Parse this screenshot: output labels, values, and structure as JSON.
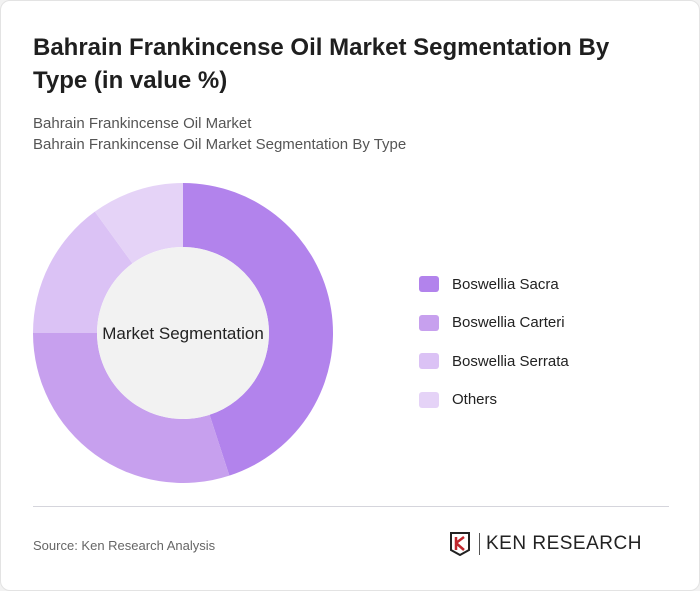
{
  "title": "Bahrain Frankincense Oil Market Segmentation By Type (in value %)",
  "subtitle1": "Bahrain Frankincense Oil Market",
  "subtitle2": "Bahrain Frankincense Oil Market Segmentation By Type",
  "source": "Source: Ken Research Analysis",
  "logo_text": "KEN RESEARCH",
  "chart_data": {
    "type": "pie",
    "variant": "donut",
    "center_label": "Market Segmentation",
    "categories": [
      "Boswellia Sacra",
      "Boswellia Carteri",
      "Boswellia Serrata",
      "Others"
    ],
    "values": [
      45,
      30,
      15,
      10
    ],
    "colors": [
      "#b283ec",
      "#c7a0ee",
      "#dbc2f5",
      "#e5d3f7"
    ],
    "legend_position": "right"
  }
}
